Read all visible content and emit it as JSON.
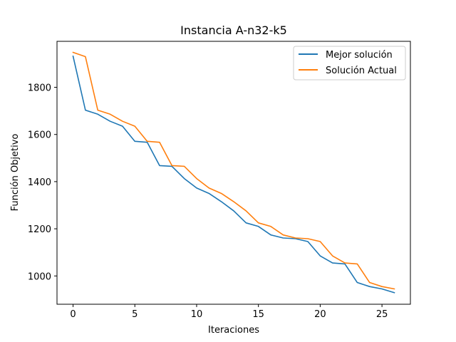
{
  "chart_data": {
    "type": "line",
    "title": "Instancia A-n32-k5",
    "xlabel": "Iteraciones",
    "ylabel": "Función Objetivo",
    "xlim": [
      -1.3,
      27.3
    ],
    "ylim": [
      880,
      1995
    ],
    "xticks": [
      0,
      5,
      10,
      15,
      20,
      25
    ],
    "yticks": [
      1000,
      1200,
      1400,
      1600,
      1800
    ],
    "grid": false,
    "legend_position": "top-right",
    "x": [
      0,
      1,
      2,
      3,
      4,
      5,
      6,
      7,
      8,
      9,
      10,
      11,
      12,
      13,
      14,
      15,
      16,
      17,
      18,
      19,
      20,
      21,
      22,
      23,
      24,
      25,
      26
    ],
    "series": [
      {
        "name": "Mejor solución",
        "color": "#1f77b4",
        "values": [
          1932,
          1703,
          1686,
          1656,
          1635,
          1571,
          1567,
          1468,
          1465,
          1413,
          1373,
          1350,
          1315,
          1276,
          1225,
          1210,
          1174,
          1161,
          1158,
          1146,
          1085,
          1055,
          1051,
          972,
          955,
          945,
          929
        ]
      },
      {
        "name": "Solución Actual",
        "color": "#ff7f0e",
        "values": [
          1948,
          1930,
          1703,
          1686,
          1656,
          1635,
          1571,
          1567,
          1468,
          1465,
          1413,
          1373,
          1350,
          1315,
          1276,
          1225,
          1210,
          1174,
          1161,
          1158,
          1146,
          1085,
          1055,
          1051,
          972,
          955,
          945
        ]
      }
    ]
  }
}
